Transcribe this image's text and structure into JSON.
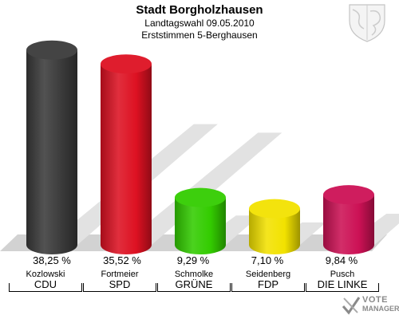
{
  "header": {
    "title": "Stadt Borgholzhausen",
    "subtitle_line1": "Landtagswahl 09.05.2010",
    "subtitle_line2": "Erststimmen 5-Berghausen"
  },
  "logo": {
    "line1": "VOTE",
    "line2": "MANAGER"
  },
  "chart_data": {
    "type": "bar",
    "title": "Stadt Borgholzhausen",
    "categories": [
      "CDU",
      "SPD",
      "GRÜNE",
      "FDP",
      "DIE LINKE"
    ],
    "candidates": [
      "Kozlowski",
      "Fortmeier",
      "Schmolke",
      "Seidenberg",
      "Pusch"
    ],
    "values": [
      38.25,
      35.52,
      9.29,
      7.1,
      9.84
    ],
    "value_labels": [
      "38,25 %",
      "35,52 %",
      "9,29 %",
      "7,10 %",
      "9,84 %"
    ],
    "colors": [
      "#3a3a3a",
      "#dd1122",
      "#33cc00",
      "#f2e200",
      "#cc1155"
    ],
    "xlabel": "",
    "ylabel": "",
    "ylim": [
      0,
      40
    ],
    "grid": false,
    "legend": "none"
  }
}
